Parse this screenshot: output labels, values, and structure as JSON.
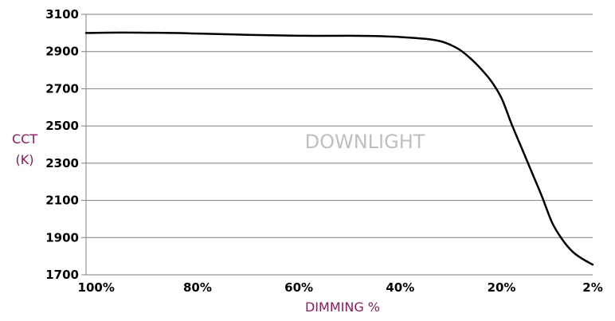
{
  "chart_data": {
    "type": "line",
    "title": "",
    "watermark": "DOWNLIGHT",
    "xlabel": "DIMMING %",
    "ylabel_lines": [
      "CCT",
      "(K)"
    ],
    "x_ticks": [
      {
        "value": 100,
        "label": "100%"
      },
      {
        "value": 80,
        "label": "80%"
      },
      {
        "value": 60,
        "label": "60%"
      },
      {
        "value": 40,
        "label": "40%"
      },
      {
        "value": 20,
        "label": "20%"
      },
      {
        "value": 2,
        "label": "2%"
      }
    ],
    "y_ticks": [
      1700,
      1900,
      2100,
      2300,
      2500,
      2700,
      2900,
      3100
    ],
    "ylim": [
      1700,
      3100
    ],
    "xlim": [
      102,
      2
    ],
    "grid": "horizontal",
    "legend": "none",
    "series": [
      {
        "x": [
          102,
          95,
          90,
          85,
          80,
          70,
          60,
          50,
          45,
          40,
          35,
          32,
          30,
          28,
          26,
          24,
          22,
          20,
          18,
          16,
          14,
          12,
          10,
          8,
          6,
          4,
          2
        ],
        "y": [
          3000,
          3002,
          3001,
          3000,
          2997,
          2990,
          2985,
          2985,
          2983,
          2978,
          2968,
          2955,
          2935,
          2905,
          2860,
          2805,
          2740,
          2650,
          2510,
          2380,
          2250,
          2120,
          1980,
          1890,
          1825,
          1785,
          1755
        ]
      }
    ],
    "colors": {
      "line": "#000000",
      "grid": "#7f7f7f",
      "axis": "#7f7f7f",
      "axis_title": "#8b1a5c",
      "watermark": "#bfbfbf",
      "tick_label": "#000000"
    }
  }
}
